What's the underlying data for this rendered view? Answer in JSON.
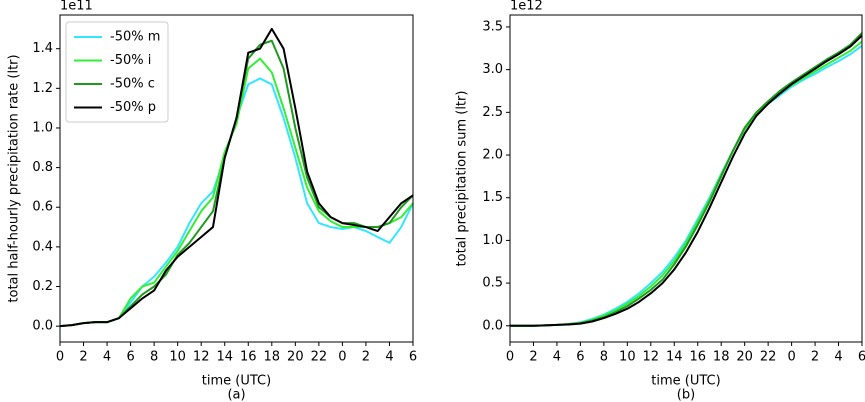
{
  "chart_data": [
    {
      "type": "line",
      "y_offset_label": "1e11",
      "ylabel": "total half-hourly precipitation rate (ltr)",
      "xlabel": "time (UTC)",
      "caption": "(a)",
      "x": [
        0,
        1,
        2,
        3,
        4,
        5,
        6,
        7,
        8,
        9,
        10,
        11,
        12,
        13,
        14,
        15,
        16,
        17,
        18,
        19,
        20,
        21,
        22,
        23,
        24,
        25,
        26,
        27,
        28,
        29,
        30
      ],
      "xlim": [
        0,
        30
      ],
      "xticks": [
        0,
        2,
        4,
        6,
        8,
        10,
        12,
        14,
        16,
        18,
        20,
        22,
        {
          "value": 24,
          "label": "0"
        },
        {
          "value": 26,
          "label": "2"
        },
        {
          "value": 28,
          "label": "4"
        },
        {
          "value": 30,
          "label": "6"
        }
      ],
      "ylim": [
        -0.08,
        1.57
      ],
      "yticks": [
        {
          "value": 0,
          "label": "0.0"
        },
        0.2,
        0.4,
        0.6,
        0.8,
        {
          "value": 1,
          "label": "1.0"
        },
        1.2,
        1.4
      ],
      "legend": "upper left",
      "series": [
        {
          "name": "-50% m",
          "color": "#33e6ff",
          "values": [
            0,
            0.005,
            0.015,
            0.02,
            0.02,
            0.04,
            0.12,
            0.2,
            0.25,
            0.32,
            0.4,
            0.52,
            0.62,
            0.68,
            0.85,
            1.05,
            1.22,
            1.25,
            1.22,
            1.05,
            0.85,
            0.62,
            0.52,
            0.5,
            0.49,
            0.5,
            0.48,
            0.45,
            0.42,
            0.5,
            0.62
          ]
        },
        {
          "name": "-50% i",
          "color": "#33ee33",
          "values": [
            0,
            0.005,
            0.015,
            0.02,
            0.02,
            0.04,
            0.14,
            0.2,
            0.22,
            0.3,
            0.38,
            0.48,
            0.58,
            0.65,
            0.88,
            1.02,
            1.3,
            1.35,
            1.28,
            1.1,
            0.9,
            0.7,
            0.58,
            0.53,
            0.5,
            0.5,
            0.5,
            0.5,
            0.52,
            0.55,
            0.62
          ]
        },
        {
          "name": "-50% c",
          "color": "#1e9a1e",
          "values": [
            0,
            0.005,
            0.015,
            0.02,
            0.02,
            0.04,
            0.1,
            0.16,
            0.2,
            0.26,
            0.36,
            0.42,
            0.5,
            0.58,
            0.85,
            1.05,
            1.35,
            1.42,
            1.44,
            1.3,
            1.0,
            0.75,
            0.6,
            0.55,
            0.52,
            0.52,
            0.5,
            0.5,
            0.52,
            0.6,
            0.66
          ]
        },
        {
          "name": "-50% p",
          "color": "#000000",
          "values": [
            0,
            0.005,
            0.015,
            0.02,
            0.02,
            0.04,
            0.09,
            0.14,
            0.18,
            0.28,
            0.35,
            0.4,
            0.45,
            0.5,
            0.85,
            1.05,
            1.38,
            1.4,
            1.5,
            1.4,
            1.1,
            0.78,
            0.62,
            0.55,
            0.52,
            0.51,
            0.5,
            0.48,
            0.55,
            0.62,
            0.66
          ]
        }
      ]
    },
    {
      "type": "line",
      "y_offset_label": "1e12",
      "ylabel": "total precipitation sum (ltr)",
      "xlabel": "time (UTC)",
      "caption": "(b)",
      "x": [
        0,
        1,
        2,
        3,
        4,
        5,
        6,
        7,
        8,
        9,
        10,
        11,
        12,
        13,
        14,
        15,
        16,
        17,
        18,
        19,
        20,
        21,
        22,
        23,
        24,
        25,
        26,
        27,
        28,
        29,
        30
      ],
      "xlim": [
        0,
        30
      ],
      "xticks": [
        0,
        2,
        4,
        6,
        8,
        10,
        12,
        14,
        16,
        18,
        20,
        22,
        {
          "value": 24,
          "label": "0"
        },
        {
          "value": 26,
          "label": "2"
        },
        {
          "value": 28,
          "label": "4"
        },
        {
          "value": 30,
          "label": "6"
        }
      ],
      "ylim": [
        -0.19,
        3.64
      ],
      "yticks": [
        {
          "value": 0,
          "label": "0.0"
        },
        0.5,
        {
          "value": 1,
          "label": "1.0"
        },
        1.5,
        {
          "value": 2,
          "label": "2.0"
        },
        2.5,
        {
          "value": 3,
          "label": "3.0"
        },
        3.5
      ],
      "series": [
        {
          "color": "#33e6ff",
          "values": [
            0,
            0,
            0,
            0.005,
            0.01,
            0.02,
            0.04,
            0.08,
            0.13,
            0.2,
            0.28,
            0.38,
            0.5,
            0.63,
            0.8,
            1.0,
            1.25,
            1.5,
            1.78,
            2.05,
            2.3,
            2.48,
            2.6,
            2.7,
            2.8,
            2.88,
            2.95,
            3.03,
            3.1,
            3.18,
            3.28
          ]
        },
        {
          "color": "#33ee33",
          "values": [
            0,
            0,
            0,
            0.005,
            0.01,
            0.02,
            0.035,
            0.07,
            0.12,
            0.18,
            0.26,
            0.35,
            0.46,
            0.59,
            0.76,
            0.97,
            1.22,
            1.48,
            1.77,
            2.05,
            2.3,
            2.48,
            2.61,
            2.72,
            2.82,
            2.9,
            2.98,
            3.06,
            3.14,
            3.22,
            3.33
          ]
        },
        {
          "color": "#1e9a1e",
          "values": [
            0,
            0,
            0,
            0.005,
            0.01,
            0.02,
            0.03,
            0.06,
            0.1,
            0.16,
            0.23,
            0.32,
            0.42,
            0.54,
            0.72,
            0.93,
            1.18,
            1.45,
            1.75,
            2.05,
            2.32,
            2.5,
            2.63,
            2.75,
            2.85,
            2.94,
            3.03,
            3.12,
            3.2,
            3.29,
            3.43
          ]
        },
        {
          "color": "#000000",
          "values": [
            0,
            0,
            0,
            0.005,
            0.01,
            0.015,
            0.025,
            0.05,
            0.09,
            0.14,
            0.2,
            0.28,
            0.38,
            0.5,
            0.66,
            0.86,
            1.1,
            1.38,
            1.68,
            1.98,
            2.25,
            2.46,
            2.6,
            2.72,
            2.83,
            2.92,
            3.01,
            3.1,
            3.18,
            3.27,
            3.4
          ]
        }
      ]
    }
  ]
}
